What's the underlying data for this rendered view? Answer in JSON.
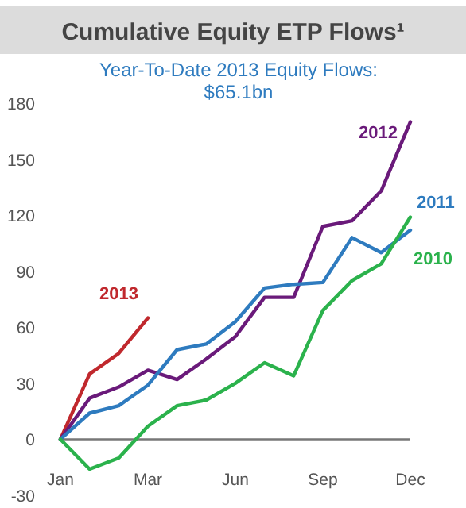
{
  "chart_data": {
    "type": "line",
    "title": "Cumulative Equity ETP Flows¹",
    "subtitle": "Year-To-Date 2013 Equity Flows: $65.1bn",
    "categories": [
      "Jan",
      null,
      null,
      "Mar",
      null,
      null,
      "Jun",
      null,
      null,
      "Sep",
      null,
      null,
      "Dec"
    ],
    "ylim": [
      -30,
      180
    ],
    "yticks": [
      -30,
      0,
      30,
      60,
      90,
      120,
      150,
      180
    ],
    "marker": "none",
    "line_style": "solid",
    "series": [
      {
        "name": "2013",
        "color": "#c0282d",
        "values": [
          0,
          35,
          46,
          65,
          null,
          null,
          null,
          null,
          null,
          null,
          null,
          null,
          null
        ]
      },
      {
        "name": "2012",
        "color": "#6a1a7a",
        "values": [
          0,
          22,
          28,
          37,
          32,
          43,
          55,
          76,
          76,
          114,
          117,
          133,
          170
        ]
      },
      {
        "name": "2011",
        "color": "#2e7bbf",
        "values": [
          0,
          14,
          18,
          29,
          48,
          51,
          63,
          81,
          83,
          84,
          108,
          100,
          112
        ]
      },
      {
        "name": "2010",
        "color": "#2bb24c",
        "values": [
          0,
          -16,
          -10,
          7,
          18,
          21,
          30,
          41,
          34,
          69,
          85,
          94,
          119
        ]
      }
    ]
  }
}
